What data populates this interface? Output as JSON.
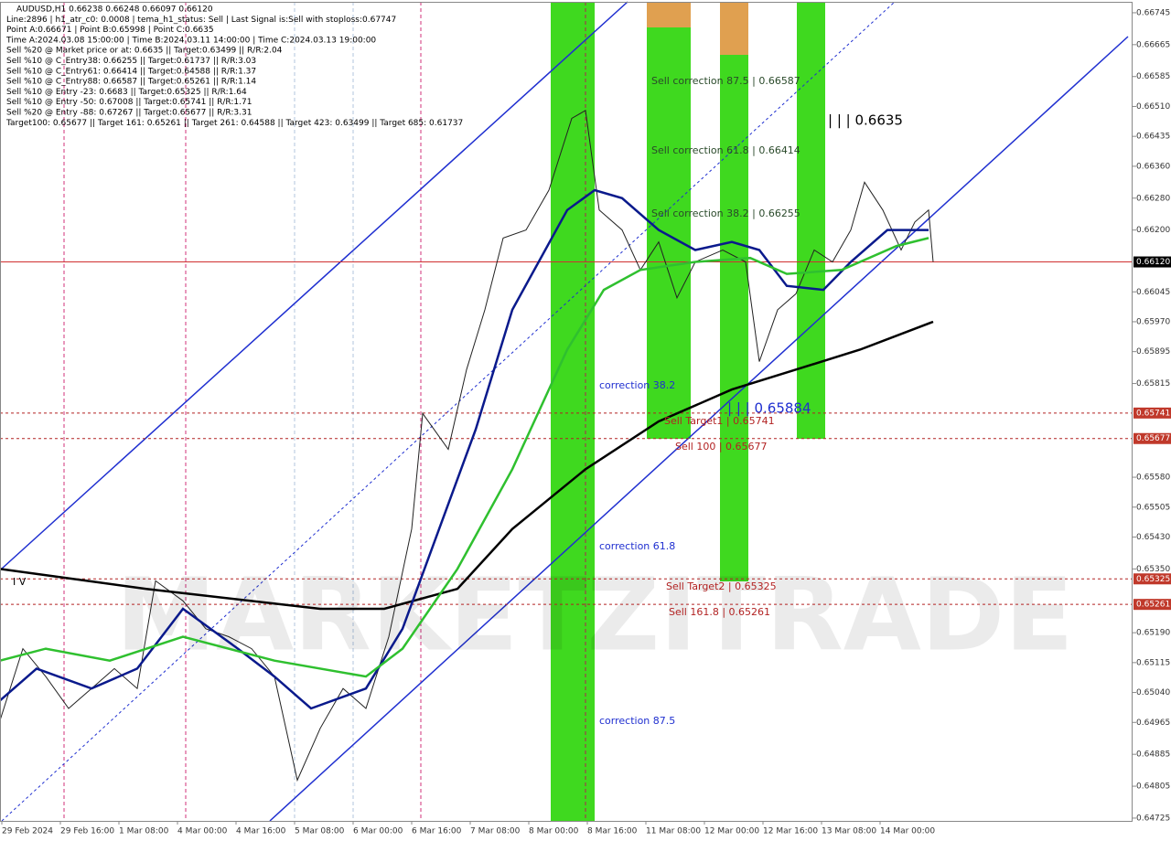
{
  "chart_data": {
    "type": "line",
    "info_lines": [
      "AUDUSD,H1  0.66238 0.66248 0.66097 0.66120",
      "Line:2896 | h1_atr_c0: 0.0008 | tema_h1_status: Sell | Last Signal is:Sell with stoploss:0.67747",
      "Point A:0.66671 | Point B:0.65998 | Point C:0.6635",
      "Time A:2024.03.08 15:00:00 | Time B:2024.03.11 14:00:00 | Time C:2024.03.13 19:00:00",
      "Sell %20 @ Market price or at: 0.6635 || Target:0.63499 || R/R:2.04",
      "Sell %10 @ C_Entry38: 0.66255 || Target:0.61737 || R/R:3.03",
      "Sell %10 @ C_Entry61: 0.66414 || Target:0.64588 || R/R:1.37",
      "Sell %10 @ C_Entry88: 0.66587 || Target:0.65261 || R/R:1.14",
      "Sell %10 @ Entry -23: 0.6683 || Target:0.65325 || R/R:1.64",
      "Sell %10 @ Entry -50: 0.67008 || Target:0.65741 || R/R:1.71",
      "Sell %20 @ Entry -88: 0.67267 || Target:0.65677 || R/R:3.31",
      "Target100: 0.65677 || Target 161: 0.65261 || Target 261: 0.64588 || Target 423: 0.63499 || Target 685: 0.61737"
    ],
    "watermark": "MARKETZITRADE",
    "annotations": [
      "Sell correction 87.5 | 0.66587",
      "Sell correction 61.8 | 0.66414",
      "Sell correction 38.2 | 0.66255",
      "correction 38.2",
      "correction 61.8",
      "correction 87.5",
      "Sell Target1 | 0.65741",
      "Sell 100 | 0.65677",
      "Sell Target2 | 0.65325",
      "Sell 161.8 | 0.65261",
      "| | | 0.6635",
      "| | | 0.65884",
      "I V"
    ],
    "xlim": [
      0,
      309.5
    ],
    "xticks": [
      {
        "value": 0.5,
        "label": "29 Feb 2024"
      },
      {
        "value": 16.5,
        "label": "29 Feb 16:00"
      },
      {
        "value": 32.5,
        "label": "1 Mar 08:00"
      },
      {
        "value": 48.5,
        "label": "4 Mar 00:00"
      },
      {
        "value": 64.5,
        "label": "4 Mar 16:00"
      },
      {
        "value": 80.5,
        "label": "5 Mar 08:00"
      },
      {
        "value": 96.5,
        "label": "6 Mar 00:00"
      },
      {
        "value": 112.5,
        "label": "6 Mar 16:00"
      },
      {
        "value": 128.5,
        "label": "7 Mar 08:00"
      },
      {
        "value": 144.5,
        "label": "8 Mar 00:00"
      },
      {
        "value": 160.5,
        "label": "8 Mar 16:00"
      },
      {
        "value": 176.5,
        "label": "11 Mar 08:00"
      },
      {
        "value": 192.5,
        "label": "12 Mar 00:00"
      },
      {
        "value": 208.5,
        "label": "12 Mar 16:00"
      },
      {
        "value": 224.5,
        "label": "13 Mar 08:00"
      },
      {
        "value": 240.5,
        "label": "14 Mar 00:00"
      }
    ],
    "ylim": [
      0.64718,
      0.66777
    ],
    "yticks": [
      {
        "value": 0.66745,
        "label": "0.66745"
      },
      {
        "value": 0.66665,
        "label": "0.66665"
      },
      {
        "value": 0.66585,
        "label": "0.66585"
      },
      {
        "value": 0.6651,
        "label": "0.66510"
      },
      {
        "value": 0.66435,
        "label": "0.66435"
      },
      {
        "value": 0.6636,
        "label": "0.66360"
      },
      {
        "value": 0.6628,
        "label": "0.66280"
      },
      {
        "value": 0.662,
        "label": "0.66200"
      },
      {
        "value": 0.66045,
        "label": "0.66045"
      },
      {
        "value": 0.6597,
        "label": "0.65970"
      },
      {
        "value": 0.65895,
        "label": "0.65895"
      },
      {
        "value": 0.65815,
        "label": "0.65815"
      },
      {
        "value": 0.6558,
        "label": "0.65580"
      },
      {
        "value": 0.65505,
        "label": "0.65505"
      },
      {
        "value": 0.6543,
        "label": "0.65430"
      },
      {
        "value": 0.6535,
        "label": "0.65350"
      },
      {
        "value": 0.6519,
        "label": "0.65190"
      },
      {
        "value": 0.65115,
        "label": "0.65115"
      },
      {
        "value": 0.6504,
        "label": "0.65040"
      },
      {
        "value": 0.64965,
        "label": "0.64965"
      },
      {
        "value": 0.64885,
        "label": "0.64885"
      },
      {
        "value": 0.64805,
        "label": "0.64805"
      },
      {
        "value": 0.64725,
        "label": "0.64725"
      }
    ],
    "levels": [
      {
        "value": 0.65741,
        "label": "0.65741"
      },
      {
        "value": 0.65677,
        "label": "0.65677"
      },
      {
        "value": 0.65325,
        "label": "0.65325"
      },
      {
        "value": 0.65261,
        "label": "0.65261"
      }
    ],
    "current_price": {
      "value": 0.6612,
      "label": "0.66120"
    },
    "series": [
      {
        "color": "#222222",
        "x": [
          0,
          6.25,
          12.5,
          18.75,
          25,
          31.25,
          37.5,
          42.5,
          50,
          56.25,
          62.5,
          68.75,
          75,
          81.25,
          87.5,
          93.75,
          100,
          106.25,
          112.5,
          115.5,
          122.5,
          127.5,
          132.5,
          137.5,
          143.75,
          150,
          156.25,
          160,
          163.75,
          170,
          175,
          180,
          185,
          190,
          197.5,
          203.75,
          207.5,
          212.5,
          217.5,
          222.5,
          227.5,
          232.5,
          236.25,
          241.25,
          246.25,
          250,
          253.75,
          255
        ],
        "values": [
          0.6497,
          0.6515,
          0.6508,
          0.65,
          0.6505,
          0.651,
          0.6505,
          0.6532,
          0.6527,
          0.652,
          0.6518,
          0.6515,
          0.6508,
          0.6482,
          0.6495,
          0.6505,
          0.65,
          0.6518,
          0.6545,
          0.6574,
          0.6565,
          0.6585,
          0.66,
          0.6618,
          0.662,
          0.663,
          0.6648,
          0.665,
          0.6625,
          0.662,
          0.661,
          0.6617,
          0.6603,
          0.6612,
          0.6615,
          0.6612,
          0.6587,
          0.66,
          0.6604,
          0.6615,
          0.6612,
          0.662,
          0.6632,
          0.6625,
          0.6615,
          0.6622,
          0.6625,
          0.6612
        ]
      },
      {
        "color": "#000000",
        "x": [
          0,
          40,
          87.5,
          105,
          125,
          140,
          160,
          180,
          200,
          217.5,
          235,
          255
        ],
        "values": [
          0.6535,
          0.653,
          0.6525,
          0.6525,
          0.653,
          0.6545,
          0.656,
          0.6572,
          0.658,
          0.6585,
          0.659,
          0.6597
        ]
      },
      {
        "color": "#0a1a8c",
        "x": [
          0,
          10,
          25,
          37.5,
          50,
          65,
          75,
          85,
          100,
          110,
          120,
          130,
          140,
          155,
          162.5,
          170,
          180,
          190,
          200,
          207.5,
          215,
          225,
          232.5,
          242.5,
          253.75
        ],
        "values": [
          0.6502,
          0.651,
          0.6505,
          0.651,
          0.6525,
          0.6515,
          0.6508,
          0.65,
          0.6505,
          0.652,
          0.6545,
          0.657,
          0.66,
          0.6625,
          0.663,
          0.6628,
          0.662,
          0.6615,
          0.6617,
          0.6615,
          0.6606,
          0.6605,
          0.6612,
          0.662,
          0.662
        ]
      },
      {
        "color": "#2fc02f",
        "x": [
          0,
          12.5,
          30,
          50,
          75,
          100,
          110,
          125,
          140,
          155,
          165,
          175,
          190,
          205,
          215,
          230,
          245,
          253.75
        ],
        "values": [
          0.6512,
          0.6515,
          0.6512,
          0.6518,
          0.6512,
          0.6508,
          0.6515,
          0.6535,
          0.656,
          0.659,
          0.6605,
          0.661,
          0.6612,
          0.6613,
          0.6609,
          0.661,
          0.6616,
          0.6618
        ]
      }
    ]
  }
}
